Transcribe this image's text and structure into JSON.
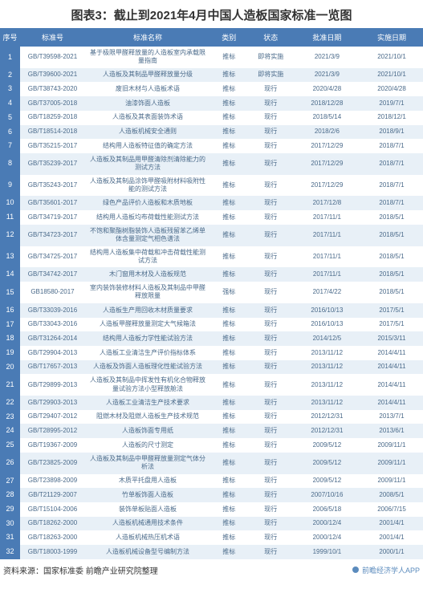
{
  "title": "图表3：截止到2021年4月中国人造板国家标准一览图",
  "headers": {
    "seq": "序号",
    "code": "标准号",
    "name": "标准名称",
    "type": "类别",
    "status": "状态",
    "approve": "批准日期",
    "impl": "实施日期"
  },
  "rows": [
    {
      "seq": "1",
      "code": "GB/T39598-2021",
      "name": "基于极限甲醛释放量的人造板室内承载限量指南",
      "type": "推标",
      "status": "即将实施",
      "approve": "2021/3/9",
      "impl": "2021/10/1"
    },
    {
      "seq": "2",
      "code": "GB/T39600-2021",
      "name": "人造板及其制品甲醛释放量分级",
      "type": "推标",
      "status": "即将实施",
      "approve": "2021/3/9",
      "impl": "2021/10/1"
    },
    {
      "seq": "3",
      "code": "GB/T38743-2020",
      "name": "废旧木材与人造板术语",
      "type": "推标",
      "status": "现行",
      "approve": "2020/4/28",
      "impl": "2020/4/28"
    },
    {
      "seq": "4",
      "code": "GB/T37005-2018",
      "name": "油漆饰面人造板",
      "type": "推标",
      "status": "现行",
      "approve": "2018/12/28",
      "impl": "2019/7/1"
    },
    {
      "seq": "5",
      "code": "GB/T18259-2018",
      "name": "人造板及其表面装饰术语",
      "type": "推标",
      "status": "现行",
      "approve": "2018/5/14",
      "impl": "2018/12/1"
    },
    {
      "seq": "6",
      "code": "GB/T18514-2018",
      "name": "人造板机械安全通则",
      "type": "推标",
      "status": "现行",
      "approve": "2018/2/6",
      "impl": "2018/9/1"
    },
    {
      "seq": "7",
      "code": "GB/T35215-2017",
      "name": "结构用人造板特征值的确定方法",
      "type": "推标",
      "status": "现行",
      "approve": "2017/12/29",
      "impl": "2018/7/1"
    },
    {
      "seq": "8",
      "code": "GB/T35239-2017",
      "name": "人造板及其制品用甲醛清除剂清除能力的测试方法",
      "type": "推标",
      "status": "现行",
      "approve": "2017/12/29",
      "impl": "2018/7/1"
    },
    {
      "seq": "9",
      "code": "GB/T35243-2017",
      "name": "人造板及其制品涂饰甲醛吸附材料吸附性能的测试方法",
      "type": "推标",
      "status": "现行",
      "approve": "2017/12/29",
      "impl": "2018/7/1"
    },
    {
      "seq": "10",
      "code": "GB/T35601-2017",
      "name": "绿色产品评价人造板和木质地板",
      "type": "推标",
      "status": "现行",
      "approve": "2017/12/8",
      "impl": "2018/7/1"
    },
    {
      "seq": "11",
      "code": "GB/T34719-2017",
      "name": "结构用人造板均布荷载性能测试方法",
      "type": "推标",
      "status": "现行",
      "approve": "2017/11/1",
      "impl": "2018/5/1"
    },
    {
      "seq": "12",
      "code": "GB/T34723-2017",
      "name": "不饱和聚酯树脂装饰人造板残留苯乙烯单体含量测定气相色谱法",
      "type": "推标",
      "status": "现行",
      "approve": "2017/11/1",
      "impl": "2018/5/1"
    },
    {
      "seq": "13",
      "code": "GB/T34725-2017",
      "name": "结构用人造板集中荷载和冲击荷载性能测试方法",
      "type": "推标",
      "status": "现行",
      "approve": "2017/11/1",
      "impl": "2018/5/1"
    },
    {
      "seq": "14",
      "code": "GB/T34742-2017",
      "name": "木门窗用木材及人造板规范",
      "type": "推标",
      "status": "现行",
      "approve": "2017/11/1",
      "impl": "2018/5/1"
    },
    {
      "seq": "15",
      "code": "GB18580-2017",
      "name": "室内装饰装修材料人造板及其制品中甲醛释放限量",
      "type": "强标",
      "status": "现行",
      "approve": "2017/4/22",
      "impl": "2018/5/1"
    },
    {
      "seq": "16",
      "code": "GB/T33039-2016",
      "name": "人造板生产用回收木材质量要求",
      "type": "推标",
      "status": "现行",
      "approve": "2016/10/13",
      "impl": "2017/5/1"
    },
    {
      "seq": "17",
      "code": "GB/T33043-2016",
      "name": "人造板甲醛释放量测定大气候箱法",
      "type": "推标",
      "status": "现行",
      "approve": "2016/10/13",
      "impl": "2017/5/1"
    },
    {
      "seq": "18",
      "code": "GB/T31264-2014",
      "name": "结构用人造板力学性能试验方法",
      "type": "推标",
      "status": "现行",
      "approve": "2014/12/5",
      "impl": "2015/3/11"
    },
    {
      "seq": "19",
      "code": "GB/T29904-2013",
      "name": "人造板工业清洁生产评价指标体系",
      "type": "推标",
      "status": "现行",
      "approve": "2013/11/12",
      "impl": "2014/4/11"
    },
    {
      "seq": "20",
      "code": "GB/T17657-2013",
      "name": "人造板及饰面人造板理化性能试验方法",
      "type": "推标",
      "status": "现行",
      "approve": "2013/11/12",
      "impl": "2014/4/11"
    },
    {
      "seq": "21",
      "code": "GB/T29899-2013",
      "name": "人造板及其制品中挥发性有机化合物释放量试验方法小型释放舱法",
      "type": "推标",
      "status": "现行",
      "approve": "2013/11/12",
      "impl": "2014/4/11"
    },
    {
      "seq": "22",
      "code": "GB/T29903-2013",
      "name": "人造板工业清洁生产技术要求",
      "type": "推标",
      "status": "现行",
      "approve": "2013/11/12",
      "impl": "2014/4/11"
    },
    {
      "seq": "23",
      "code": "GB/T29407-2012",
      "name": "阻燃木材及阻燃人造板生产技术规范",
      "type": "推标",
      "status": "现行",
      "approve": "2012/12/31",
      "impl": "2013/7/1"
    },
    {
      "seq": "24",
      "code": "GB/T28995-2012",
      "name": "人造板饰面专用纸",
      "type": "推标",
      "status": "现行",
      "approve": "2012/12/31",
      "impl": "2013/6/1"
    },
    {
      "seq": "25",
      "code": "GB/T19367-2009",
      "name": "人造板的尺寸测定",
      "type": "推标",
      "status": "现行",
      "approve": "2009/5/12",
      "impl": "2009/11/1"
    },
    {
      "seq": "26",
      "code": "GB/T23825-2009",
      "name": "人造板及其制品中甲醛释放量测定气体分析法",
      "type": "推标",
      "status": "现行",
      "approve": "2009/5/12",
      "impl": "2009/11/1"
    },
    {
      "seq": "27",
      "code": "GB/T23898-2009",
      "name": "木质平托盘用人造板",
      "type": "推标",
      "status": "现行",
      "approve": "2009/5/12",
      "impl": "2009/11/1"
    },
    {
      "seq": "28",
      "code": "GB/T21129-2007",
      "name": "竹单板饰面人造板",
      "type": "推标",
      "status": "现行",
      "approve": "2007/10/16",
      "impl": "2008/5/1"
    },
    {
      "seq": "29",
      "code": "GB/T15104-2006",
      "name": "装饰单板贴面人造板",
      "type": "推标",
      "status": "现行",
      "approve": "2006/5/18",
      "impl": "2006/7/15"
    },
    {
      "seq": "30",
      "code": "GB/T18262-2000",
      "name": "人造板机械通用技术条件",
      "type": "推标",
      "status": "现行",
      "approve": "2000/12/4",
      "impl": "2001/4/1"
    },
    {
      "seq": "31",
      "code": "GB/T18263-2000",
      "name": "人造板机械热压机术语",
      "type": "推标",
      "status": "现行",
      "approve": "2000/12/4",
      "impl": "2001/4/1"
    },
    {
      "seq": "32",
      "code": "GB/T18003-1999",
      "name": "人造板机械设备型号编制方法",
      "type": "推标",
      "status": "现行",
      "approve": "1999/10/1",
      "impl": "2000/1/1"
    }
  ],
  "footer": {
    "left": "资料来源：国家标准委 前瞻产业研究院整理",
    "right": "前瞻经济学人APP"
  },
  "colors": {
    "header_bg": "#4a7bb5",
    "header_text": "#ffffff",
    "row_even_bg": "#e8f0f7",
    "row_odd_bg": "#ffffff",
    "cell_text": "#4a6a8a"
  }
}
